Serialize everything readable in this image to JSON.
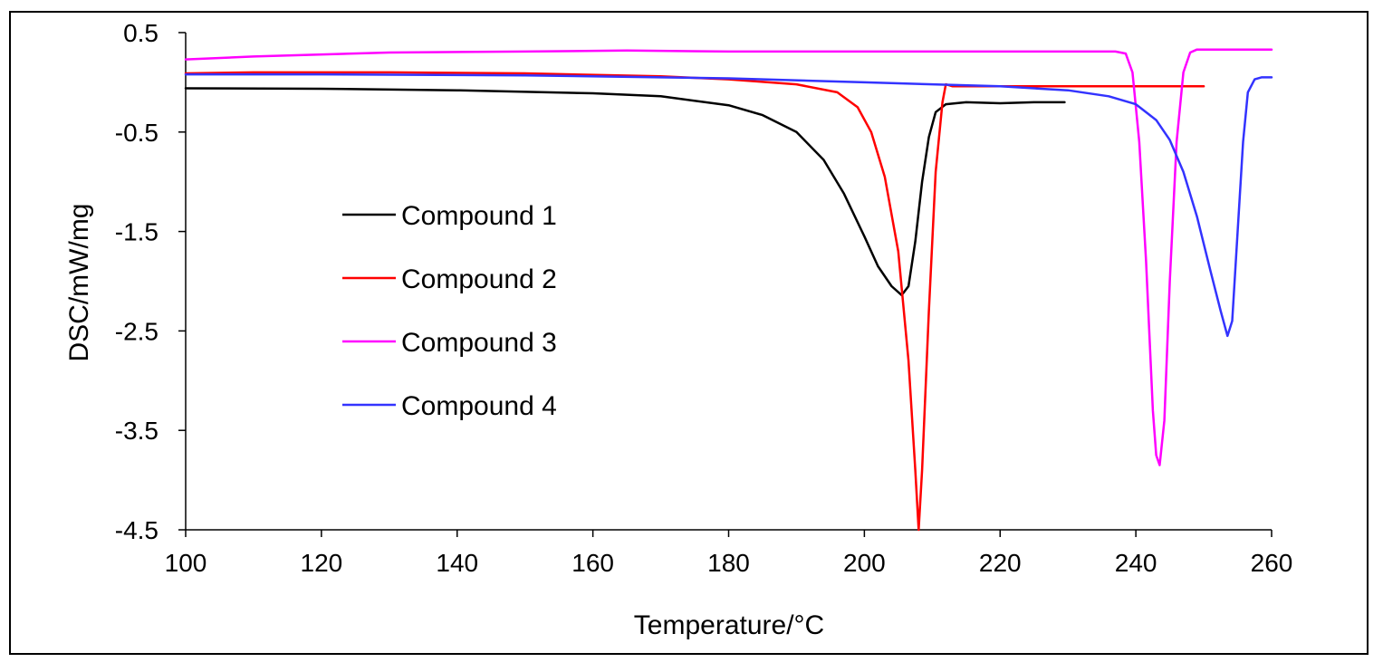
{
  "chart_data": {
    "type": "line",
    "title": "",
    "xlabel": "Temperature/°C",
    "ylabel": "DSC/mW/mg",
    "xlim": [
      100,
      260
    ],
    "ylim": [
      -4.5,
      0.5
    ],
    "xticks": [
      100,
      120,
      140,
      160,
      180,
      200,
      220,
      240,
      260
    ],
    "yticks": [
      0.5,
      -0.5,
      -1.5,
      -2.5,
      -3.5,
      -4.5
    ],
    "ytick_labels": [
      "0.5",
      "-0.5",
      "-1.5",
      "-2.5",
      "-3.5",
      "-4.5"
    ],
    "grid": false,
    "legend_position": "center-left",
    "series": [
      {
        "name": "Compound 1",
        "color": "#000000",
        "points": [
          [
            100,
            -0.06
          ],
          [
            120,
            -0.065
          ],
          [
            140,
            -0.08
          ],
          [
            160,
            -0.11
          ],
          [
            170,
            -0.14
          ],
          [
            180,
            -0.23
          ],
          [
            185,
            -0.33
          ],
          [
            190,
            -0.5
          ],
          [
            194,
            -0.78
          ],
          [
            197,
            -1.12
          ],
          [
            200,
            -1.55
          ],
          [
            202,
            -1.85
          ],
          [
            204,
            -2.05
          ],
          [
            205.5,
            -2.14
          ],
          [
            206.5,
            -2.05
          ],
          [
            207.5,
            -1.6
          ],
          [
            208.5,
            -1.0
          ],
          [
            209.5,
            -0.55
          ],
          [
            210.5,
            -0.3
          ],
          [
            212,
            -0.22
          ],
          [
            215,
            -0.2
          ],
          [
            220,
            -0.21
          ],
          [
            225,
            -0.2
          ],
          [
            229.5,
            -0.2
          ]
        ]
      },
      {
        "name": "Compound 2",
        "color": "#ff0000",
        "points": [
          [
            100,
            0.09
          ],
          [
            110,
            0.1
          ],
          [
            130,
            0.1
          ],
          [
            150,
            0.09
          ],
          [
            170,
            0.06
          ],
          [
            180,
            0.03
          ],
          [
            190,
            -0.02
          ],
          [
            196,
            -0.1
          ],
          [
            199,
            -0.25
          ],
          [
            201,
            -0.5
          ],
          [
            203,
            -0.95
          ],
          [
            205,
            -1.7
          ],
          [
            206.5,
            -2.8
          ],
          [
            207.5,
            -3.9
          ],
          [
            208,
            -4.5
          ],
          [
            208.5,
            -3.9
          ],
          [
            209.5,
            -2.3
          ],
          [
            210.5,
            -0.9
          ],
          [
            211.5,
            -0.2
          ],
          [
            212,
            -0.02
          ],
          [
            213,
            -0.04
          ],
          [
            220,
            -0.04
          ],
          [
            240,
            -0.04
          ],
          [
            250,
            -0.04
          ]
        ]
      },
      {
        "name": "Compound 3",
        "color": "#ff00ff",
        "points": [
          [
            100,
            0.23
          ],
          [
            110,
            0.26
          ],
          [
            130,
            0.3
          ],
          [
            150,
            0.31
          ],
          [
            165,
            0.32
          ],
          [
            180,
            0.31
          ],
          [
            200,
            0.31
          ],
          [
            220,
            0.31
          ],
          [
            237,
            0.31
          ],
          [
            238.5,
            0.29
          ],
          [
            239.5,
            0.1
          ],
          [
            240.5,
            -0.6
          ],
          [
            241.5,
            -1.8
          ],
          [
            242.5,
            -3.3
          ],
          [
            243,
            -3.75
          ],
          [
            243.5,
            -3.85
          ],
          [
            244.2,
            -3.4
          ],
          [
            245,
            -2.0
          ],
          [
            246,
            -0.6
          ],
          [
            247,
            0.1
          ],
          [
            248,
            0.3
          ],
          [
            249,
            0.33
          ],
          [
            255,
            0.33
          ],
          [
            260,
            0.33
          ]
        ]
      },
      {
        "name": "Compound 4",
        "color": "#3333ff",
        "points": [
          [
            100,
            0.08
          ],
          [
            120,
            0.08
          ],
          [
            150,
            0.07
          ],
          [
            180,
            0.04
          ],
          [
            200,
            0.0
          ],
          [
            220,
            -0.04
          ],
          [
            230,
            -0.08
          ],
          [
            236,
            -0.14
          ],
          [
            240,
            -0.22
          ],
          [
            243,
            -0.38
          ],
          [
            245,
            -0.58
          ],
          [
            247,
            -0.9
          ],
          [
            249,
            -1.35
          ],
          [
            251,
            -1.9
          ],
          [
            252.5,
            -2.3
          ],
          [
            253.5,
            -2.55
          ],
          [
            254.2,
            -2.4
          ],
          [
            255,
            -1.5
          ],
          [
            255.8,
            -0.6
          ],
          [
            256.5,
            -0.1
          ],
          [
            257.5,
            0.03
          ],
          [
            258.5,
            0.05
          ],
          [
            260,
            0.05
          ]
        ]
      }
    ]
  }
}
